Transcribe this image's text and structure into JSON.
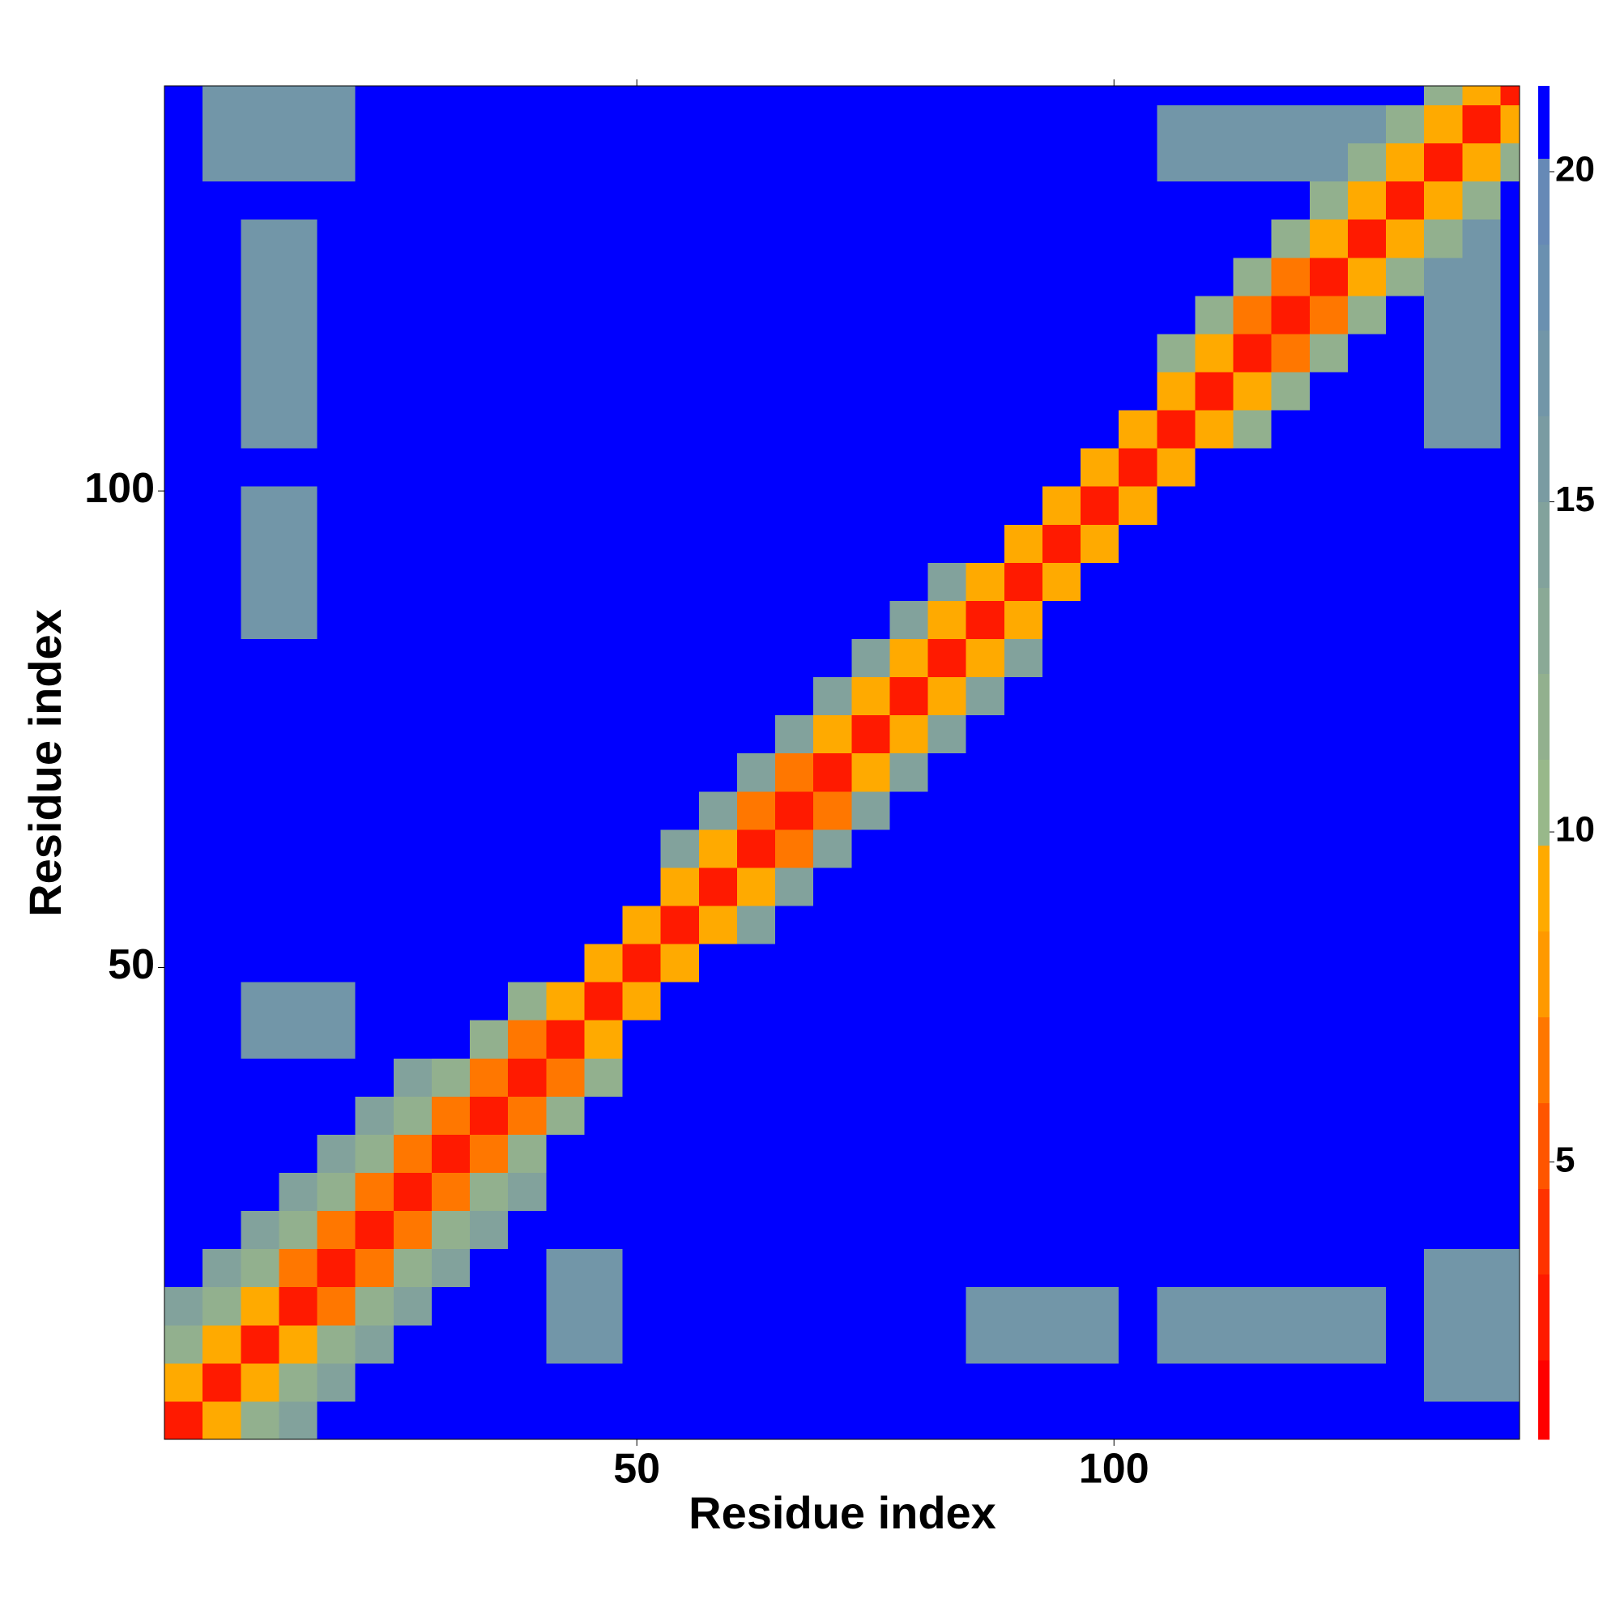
{
  "chart_data": {
    "type": "heatmap",
    "xlabel": "Residue index",
    "ylabel": "Residue index",
    "xlim": [
      0.5,
      142.5
    ],
    "ylim": [
      0.5,
      142.5
    ],
    "xticks": [
      50,
      100
    ],
    "yticks": [
      50,
      100
    ],
    "xbins": [
      0.5,
      4.5,
      8.5,
      12.5,
      16.5,
      20.5,
      24.5,
      28.5,
      32.5,
      36.5,
      40.5,
      44.5,
      48.5,
      52.5,
      56.5,
      60.5,
      64.5,
      68.5,
      72.5,
      76.5,
      80.5,
      84.5,
      88.5,
      92.5,
      96.5,
      100.5,
      104.5,
      108.5,
      112.5,
      116.5,
      120.5,
      124.5,
      128.5,
      132.5,
      136.5,
      140.5,
      142.5
    ],
    "ybins": [
      0.5,
      4.5,
      8.5,
      12.5,
      16.5,
      20.5,
      24.5,
      28.5,
      32.5,
      36.5,
      40.5,
      44.5,
      48.5,
      52.5,
      56.5,
      60.5,
      64.5,
      68.5,
      72.5,
      76.5,
      80.5,
      84.5,
      88.5,
      92.5,
      96.5,
      100.5,
      104.5,
      108.5,
      112.5,
      116.5,
      120.5,
      124.5,
      128.5,
      132.5,
      136.5,
      140.5,
      142.5
    ],
    "zlim": [
      0.8,
      21.3
    ],
    "zticks": [
      5,
      10,
      15,
      20
    ],
    "levels": [
      0.8,
      2,
      3.3,
      4.6,
      5.9,
      7.2,
      8.5,
      9.8,
      11.1,
      12.4,
      13.7,
      15,
      16.3,
      17.6,
      18.9,
      20.2,
      21.3
    ],
    "colors": [
      "#ff0000",
      "#ff1a00",
      "#ff3300",
      "#ff5500",
      "#ff7700",
      "#ff9900",
      "#ffaa00",
      "#98b88a",
      "#92b08e",
      "#8aa996",
      "#82a29c",
      "#7a9ba2",
      "#7296a8",
      "#6a90b0",
      "#6689b6",
      "#0000ff"
    ],
    "matrix": [
      [
        3,
        9,
        12,
        14,
        21,
        21,
        21,
        21,
        21,
        21,
        21,
        21,
        21,
        21,
        21,
        21,
        21,
        21,
        21,
        21,
        21,
        21,
        21,
        21,
        21,
        21,
        21,
        21,
        21,
        21,
        21,
        21,
        21,
        21,
        21,
        21
      ],
      [
        9,
        3,
        9,
        12,
        14,
        21,
        21,
        21,
        21,
        21,
        21,
        21,
        21,
        21,
        21,
        21,
        21,
        21,
        21,
        21,
        21,
        21,
        21,
        21,
        21,
        21,
        21,
        21,
        21,
        21,
        21,
        21,
        21,
        17,
        17,
        17
      ],
      [
        12,
        9,
        3,
        9,
        12,
        14,
        21,
        21,
        21,
        21,
        17,
        17,
        21,
        21,
        21,
        21,
        21,
        21,
        21,
        21,
        21,
        17,
        17,
        17,
        17,
        21,
        17,
        17,
        17,
        17,
        17,
        17,
        21,
        17,
        17,
        17
      ],
      [
        14,
        12,
        9,
        3,
        7,
        12,
        14,
        21,
        21,
        21,
        17,
        17,
        21,
        21,
        21,
        21,
        21,
        21,
        21,
        21,
        21,
        17,
        17,
        17,
        17,
        21,
        17,
        17,
        17,
        17,
        17,
        17,
        21,
        17,
        17,
        17
      ],
      [
        21,
        14,
        12,
        7,
        3,
        7,
        12,
        14,
        21,
        21,
        17,
        17,
        21,
        21,
        21,
        21,
        21,
        21,
        21,
        21,
        21,
        21,
        21,
        21,
        21,
        21,
        21,
        21,
        21,
        21,
        21,
        21,
        21,
        17,
        17,
        17
      ],
      [
        21,
        21,
        14,
        12,
        7,
        3,
        7,
        12,
        14,
        21,
        21,
        21,
        21,
        21,
        21,
        21,
        21,
        21,
        21,
        21,
        21,
        21,
        21,
        21,
        21,
        21,
        21,
        21,
        21,
        21,
        21,
        21,
        21,
        21,
        21,
        21
      ],
      [
        21,
        21,
        21,
        14,
        12,
        7,
        3,
        7,
        12,
        14,
        21,
        21,
        21,
        21,
        21,
        21,
        21,
        21,
        21,
        21,
        21,
        21,
        21,
        21,
        21,
        21,
        21,
        21,
        21,
        21,
        21,
        21,
        21,
        21,
        21,
        21
      ],
      [
        21,
        21,
        21,
        21,
        14,
        12,
        7,
        3,
        7,
        12,
        21,
        21,
        21,
        21,
        21,
        21,
        21,
        21,
        21,
        21,
        21,
        21,
        21,
        21,
        21,
        21,
        21,
        21,
        21,
        21,
        21,
        21,
        21,
        21,
        21,
        21
      ],
      [
        21,
        21,
        21,
        21,
        21,
        14,
        12,
        7,
        3,
        7,
        12,
        21,
        21,
        21,
        21,
        21,
        21,
        21,
        21,
        21,
        21,
        21,
        21,
        21,
        21,
        21,
        21,
        21,
        21,
        21,
        21,
        21,
        21,
        21,
        21,
        21
      ],
      [
        21,
        21,
        21,
        21,
        21,
        21,
        14,
        12,
        7,
        3,
        7,
        12,
        21,
        21,
        21,
        21,
        21,
        21,
        21,
        21,
        21,
        21,
        21,
        21,
        21,
        21,
        21,
        21,
        21,
        21,
        21,
        21,
        21,
        21,
        21,
        21
      ],
      [
        21,
        21,
        17,
        17,
        17,
        21,
        21,
        21,
        12,
        7,
        3,
        9,
        21,
        21,
        21,
        21,
        21,
        21,
        21,
        21,
        21,
        21,
        21,
        21,
        21,
        21,
        21,
        21,
        21,
        21,
        21,
        21,
        21,
        21,
        21,
        21
      ],
      [
        21,
        21,
        17,
        17,
        17,
        21,
        21,
        21,
        21,
        12,
        9,
        3,
        9,
        21,
        21,
        21,
        21,
        21,
        21,
        21,
        21,
        21,
        21,
        21,
        21,
        21,
        21,
        21,
        21,
        21,
        21,
        21,
        21,
        21,
        21,
        21
      ],
      [
        21,
        21,
        21,
        21,
        21,
        21,
        21,
        21,
        21,
        21,
        21,
        9,
        3,
        9,
        21,
        21,
        21,
        21,
        21,
        21,
        21,
        21,
        21,
        21,
        21,
        21,
        21,
        21,
        21,
        21,
        21,
        21,
        21,
        21,
        21,
        21
      ],
      [
        21,
        21,
        21,
        21,
        21,
        21,
        21,
        21,
        21,
        21,
        21,
        21,
        9,
        3,
        9,
        14,
        21,
        21,
        21,
        21,
        21,
        21,
        21,
        21,
        21,
        21,
        21,
        21,
        21,
        21,
        21,
        21,
        21,
        21,
        21,
        21
      ],
      [
        21,
        21,
        21,
        21,
        21,
        21,
        21,
        21,
        21,
        21,
        21,
        21,
        21,
        9,
        3,
        9,
        14,
        21,
        21,
        21,
        21,
        21,
        21,
        21,
        21,
        21,
        21,
        21,
        21,
        21,
        21,
        21,
        21,
        21,
        21,
        21
      ],
      [
        21,
        21,
        21,
        21,
        21,
        21,
        21,
        21,
        21,
        21,
        21,
        21,
        21,
        14,
        9,
        3,
        7,
        14,
        21,
        21,
        21,
        21,
        21,
        21,
        21,
        21,
        21,
        21,
        21,
        21,
        21,
        21,
        21,
        21,
        21,
        21
      ],
      [
        21,
        21,
        21,
        21,
        21,
        21,
        21,
        21,
        21,
        21,
        21,
        21,
        21,
        21,
        14,
        7,
        3,
        7,
        14,
        21,
        21,
        21,
        21,
        21,
        21,
        21,
        21,
        21,
        21,
        21,
        21,
        21,
        21,
        21,
        21,
        21
      ],
      [
        21,
        21,
        21,
        21,
        21,
        21,
        21,
        21,
        21,
        21,
        21,
        21,
        21,
        21,
        21,
        14,
        7,
        3,
        9,
        14,
        21,
        21,
        21,
        21,
        21,
        21,
        21,
        21,
        21,
        21,
        21,
        21,
        21,
        21,
        21,
        21
      ],
      [
        21,
        21,
        21,
        21,
        21,
        21,
        21,
        21,
        21,
        21,
        21,
        21,
        21,
        21,
        21,
        21,
        14,
        9,
        3,
        9,
        14,
        21,
        21,
        21,
        21,
        21,
        21,
        21,
        21,
        21,
        21,
        21,
        21,
        21,
        21,
        21
      ],
      [
        21,
        21,
        21,
        21,
        21,
        21,
        21,
        21,
        21,
        21,
        21,
        21,
        21,
        21,
        21,
        21,
        21,
        14,
        9,
        3,
        9,
        14,
        21,
        21,
        21,
        21,
        21,
        21,
        21,
        21,
        21,
        21,
        21,
        21,
        21,
        21
      ],
      [
        21,
        21,
        21,
        21,
        21,
        21,
        21,
        21,
        21,
        21,
        21,
        21,
        21,
        21,
        21,
        21,
        21,
        21,
        14,
        9,
        3,
        9,
        14,
        21,
        21,
        21,
        21,
        21,
        21,
        21,
        21,
        21,
        21,
        21,
        21,
        21
      ],
      [
        21,
        21,
        17,
        17,
        21,
        21,
        21,
        21,
        21,
        21,
        21,
        21,
        21,
        21,
        21,
        21,
        21,
        21,
        21,
        14,
        9,
        3,
        9,
        21,
        21,
        21,
        21,
        21,
        21,
        21,
        21,
        21,
        21,
        21,
        21,
        21
      ],
      [
        21,
        21,
        17,
        17,
        21,
        21,
        21,
        21,
        21,
        21,
        21,
        21,
        21,
        21,
        21,
        21,
        21,
        21,
        21,
        21,
        14,
        9,
        3,
        9,
        21,
        21,
        21,
        21,
        21,
        21,
        21,
        21,
        21,
        21,
        21,
        21
      ],
      [
        21,
        21,
        17,
        17,
        21,
        21,
        21,
        21,
        21,
        21,
        21,
        21,
        21,
        21,
        21,
        21,
        21,
        21,
        21,
        21,
        21,
        21,
        9,
        3,
        9,
        21,
        21,
        21,
        21,
        21,
        21,
        21,
        21,
        21,
        21,
        21
      ],
      [
        21,
        21,
        17,
        17,
        21,
        21,
        21,
        21,
        21,
        21,
        21,
        21,
        21,
        21,
        21,
        21,
        21,
        21,
        21,
        21,
        21,
        21,
        21,
        9,
        3,
        9,
        21,
        21,
        21,
        21,
        21,
        21,
        21,
        21,
        21,
        21
      ],
      [
        21,
        21,
        21,
        21,
        21,
        21,
        21,
        21,
        21,
        21,
        21,
        21,
        21,
        21,
        21,
        21,
        21,
        21,
        21,
        21,
        21,
        21,
        21,
        21,
        9,
        3,
        9,
        21,
        21,
        21,
        21,
        21,
        21,
        21,
        21,
        21
      ],
      [
        21,
        21,
        17,
        17,
        21,
        21,
        21,
        21,
        21,
        21,
        21,
        21,
        21,
        21,
        21,
        21,
        21,
        21,
        21,
        21,
        21,
        21,
        21,
        21,
        21,
        9,
        3,
        9,
        12,
        21,
        21,
        21,
        21,
        17,
        17,
        21
      ],
      [
        21,
        21,
        17,
        17,
        21,
        21,
        21,
        21,
        21,
        21,
        21,
        21,
        21,
        21,
        21,
        21,
        21,
        21,
        21,
        21,
        21,
        21,
        21,
        21,
        21,
        21,
        9,
        3,
        9,
        12,
        21,
        21,
        21,
        17,
        17,
        21
      ],
      [
        21,
        21,
        17,
        17,
        21,
        21,
        21,
        21,
        21,
        21,
        21,
        21,
        21,
        21,
        21,
        21,
        21,
        21,
        21,
        21,
        21,
        21,
        21,
        21,
        21,
        21,
        12,
        9,
        3,
        7,
        12,
        21,
        21,
        17,
        17,
        21
      ],
      [
        21,
        21,
        17,
        17,
        21,
        21,
        21,
        21,
        21,
        21,
        21,
        21,
        21,
        21,
        21,
        21,
        21,
        21,
        21,
        21,
        21,
        21,
        21,
        21,
        21,
        21,
        21,
        12,
        7,
        3,
        7,
        12,
        21,
        17,
        17,
        21
      ],
      [
        21,
        21,
        17,
        17,
        21,
        21,
        21,
        21,
        21,
        21,
        21,
        21,
        21,
        21,
        21,
        21,
        21,
        21,
        21,
        21,
        21,
        21,
        21,
        21,
        21,
        21,
        21,
        21,
        12,
        7,
        3,
        9,
        12,
        17,
        17,
        21
      ],
      [
        21,
        21,
        17,
        17,
        21,
        21,
        21,
        21,
        21,
        21,
        21,
        21,
        21,
        21,
        21,
        21,
        21,
        21,
        21,
        21,
        21,
        21,
        21,
        21,
        21,
        21,
        21,
        21,
        21,
        12,
        9,
        3,
        9,
        12,
        17,
        21
      ],
      [
        21,
        21,
        21,
        21,
        21,
        21,
        21,
        21,
        21,
        21,
        21,
        21,
        21,
        21,
        21,
        21,
        21,
        21,
        21,
        21,
        21,
        21,
        21,
        21,
        21,
        21,
        21,
        21,
        21,
        21,
        12,
        9,
        3,
        9,
        12,
        21
      ],
      [
        21,
        17,
        17,
        17,
        17,
        21,
        21,
        21,
        21,
        21,
        21,
        21,
        21,
        21,
        21,
        21,
        21,
        21,
        21,
        21,
        21,
        21,
        21,
        21,
        21,
        21,
        17,
        17,
        17,
        17,
        17,
        12,
        9,
        3,
        9,
        12
      ],
      [
        21,
        17,
        17,
        17,
        17,
        21,
        21,
        21,
        21,
        21,
        21,
        21,
        21,
        21,
        21,
        21,
        21,
        21,
        21,
        21,
        21,
        21,
        21,
        21,
        21,
        21,
        17,
        17,
        17,
        17,
        17,
        17,
        12,
        9,
        3,
        9
      ],
      [
        21,
        17,
        17,
        17,
        17,
        21,
        21,
        21,
        21,
        21,
        21,
        21,
        21,
        21,
        21,
        21,
        21,
        21,
        21,
        21,
        21,
        21,
        21,
        21,
        21,
        21,
        21,
        21,
        21,
        21,
        21,
        21,
        21,
        12,
        9,
        3
      ]
    ]
  }
}
